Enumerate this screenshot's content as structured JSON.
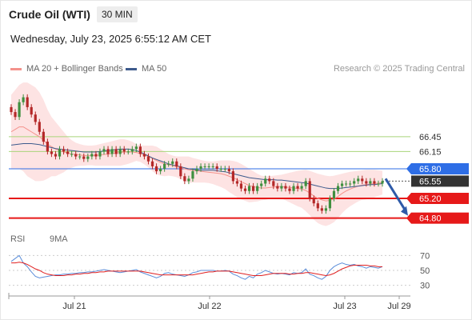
{
  "header": {
    "title": "Crude Oil (WTI)",
    "timeframe": "30 MIN",
    "datetime": "Wednesday, July 23, 2025 6:55:12 AM CET"
  },
  "legend": {
    "items": [
      {
        "label": "MA 20 + Bollinger Bands",
        "color": "#f4928c"
      },
      {
        "label": "MA 50",
        "color": "#3d5a8c"
      }
    ],
    "credit": "Research © 2025 Trading Central"
  },
  "rsi_legend": {
    "items": [
      {
        "label": "RSI",
        "color": "#5b8dd9"
      },
      {
        "label": "9MA",
        "color": "#e02020"
      }
    ]
  },
  "chart_data": {
    "type": "candlestick",
    "x_ticks": [
      "Jul 21",
      "Jul 22",
      "Jul 23",
      "Jul 29"
    ],
    "ylim": [
      64.6,
      67.6
    ],
    "closes": [
      66.95,
      66.85,
      67.15,
      67.25,
      67.05,
      66.9,
      66.75,
      66.55,
      66.35,
      66.15,
      66.1,
      66.05,
      66.2,
      66.15,
      66.1,
      66.1,
      66.05,
      66.05,
      66.0,
      66.05,
      66.1,
      66.05,
      66.15,
      66.2,
      66.1,
      66.2,
      66.1,
      66.2,
      66.15,
      66.15,
      66.2,
      66.25,
      66.1,
      66.05,
      65.95,
      65.85,
      65.75,
      65.8,
      65.9,
      65.9,
      65.95,
      65.85,
      65.65,
      65.55,
      65.6,
      65.75,
      65.8,
      65.85,
      65.85,
      65.85,
      65.85,
      65.8,
      65.8,
      65.8,
      65.75,
      65.55,
      65.5,
      65.4,
      65.35,
      65.45,
      65.35,
      65.45,
      65.5,
      65.6,
      65.55,
      65.45,
      65.4,
      65.45,
      65.4,
      65.35,
      65.45,
      65.4,
      65.45,
      65.55,
      65.2,
      65.1,
      65.0,
      64.95,
      65.0,
      65.2,
      65.35,
      65.45,
      65.5,
      65.5,
      65.5,
      65.55,
      65.6,
      65.55,
      65.5,
      65.55,
      65.5,
      65.5,
      65.55
    ],
    "ma20": [
      66.55,
      66.6,
      66.65,
      66.65,
      66.6,
      66.55,
      66.5,
      66.45,
      66.38,
      66.3,
      66.25,
      66.2,
      66.17,
      66.14,
      66.12,
      66.1,
      66.09,
      66.08,
      66.07,
      66.07,
      66.07,
      66.07,
      66.08,
      66.09,
      66.1,
      66.11,
      66.12,
      66.13,
      66.14,
      66.14,
      66.14,
      66.13,
      66.11,
      66.08,
      66.05,
      66.01,
      65.97,
      65.93,
      65.9,
      65.88,
      65.86,
      65.84,
      65.82,
      65.8,
      65.78,
      65.77,
      65.76,
      65.75,
      65.74,
      65.73,
      65.72,
      65.71,
      65.7,
      65.68,
      65.65,
      65.62,
      65.58,
      65.54,
      65.5,
      65.46,
      65.44,
      65.42,
      65.41,
      65.41,
      65.42,
      65.43,
      65.44,
      65.44,
      65.43,
      65.42,
      65.41,
      65.4,
      65.39,
      65.36,
      65.31,
      65.25,
      65.2,
      65.17,
      65.15,
      65.16,
      65.19,
      65.24,
      65.3,
      65.35,
      65.39,
      65.42,
      65.45,
      65.47,
      65.48,
      65.49,
      65.5,
      65.51,
      65.52
    ],
    "bb_upper": [
      67.3,
      67.4,
      67.5,
      67.55,
      67.55,
      67.5,
      67.45,
      67.35,
      67.2,
      67.0,
      66.85,
      66.75,
      66.65,
      66.55,
      66.45,
      66.38,
      66.33,
      66.3,
      66.28,
      66.27,
      66.27,
      66.28,
      66.3,
      66.32,
      66.34,
      66.36,
      66.38,
      66.4,
      66.4,
      66.38,
      66.35,
      66.3,
      66.28,
      66.27,
      66.27,
      66.27,
      66.25,
      66.2,
      66.15,
      66.1,
      66.07,
      66.05,
      66.05,
      66.05,
      66.05,
      66.02,
      66.0,
      65.98,
      65.96,
      65.95,
      65.95,
      65.96,
      65.97,
      65.97,
      65.97,
      65.96,
      65.94,
      65.9,
      65.85,
      65.8,
      65.75,
      65.7,
      65.66,
      65.65,
      65.65,
      65.66,
      65.67,
      65.68,
      65.7,
      65.72,
      65.74,
      65.76,
      65.77,
      65.78,
      65.76,
      65.73,
      65.7,
      65.68,
      65.66,
      65.65,
      65.66,
      65.68,
      65.7,
      65.72,
      65.74,
      65.75,
      65.76,
      65.77,
      65.78,
      65.78,
      65.78,
      65.77,
      65.76
    ],
    "bb_lower": [
      65.8,
      65.8,
      65.8,
      65.75,
      65.65,
      65.6,
      65.55,
      65.55,
      65.56,
      65.6,
      65.65,
      65.65,
      65.69,
      65.73,
      65.79,
      65.82,
      65.85,
      65.86,
      65.86,
      65.87,
      65.87,
      65.86,
      65.86,
      65.86,
      65.86,
      65.86,
      65.86,
      65.86,
      65.88,
      65.9,
      65.93,
      65.96,
      65.94,
      65.89,
      65.83,
      65.75,
      65.69,
      65.66,
      65.65,
      65.66,
      65.65,
      65.63,
      65.59,
      65.55,
      65.51,
      65.52,
      65.52,
      65.52,
      65.52,
      65.51,
      65.49,
      65.46,
      65.43,
      65.39,
      65.33,
      65.28,
      65.22,
      65.18,
      65.15,
      65.12,
      65.13,
      65.14,
      65.16,
      65.17,
      65.19,
      65.2,
      65.21,
      65.2,
      65.16,
      65.12,
      65.08,
      65.04,
      65.01,
      64.94,
      64.86,
      64.77,
      64.7,
      64.66,
      64.64,
      64.67,
      64.72,
      64.8,
      64.9,
      64.98,
      65.04,
      65.09,
      65.14,
      65.17,
      65.18,
      65.2,
      65.22,
      65.25,
      65.28
    ],
    "ma50": [
      66.28,
      66.29,
      66.3,
      66.31,
      66.31,
      66.31,
      66.3,
      66.29,
      66.27,
      66.25,
      66.23,
      66.21,
      66.2,
      66.19,
      66.18,
      66.17,
      66.16,
      66.15,
      66.14,
      66.14,
      66.14,
      66.14,
      66.15,
      66.16,
      66.17,
      66.18,
      66.19,
      66.2,
      66.2,
      66.2,
      66.19,
      66.17,
      66.14,
      66.1,
      66.06,
      66.02,
      65.99,
      65.96,
      65.93,
      65.9,
      65.88,
      65.86,
      65.84,
      65.82,
      65.8,
      65.79,
      65.78,
      65.77,
      65.77,
      65.77,
      65.77,
      65.76,
      65.75,
      65.74,
      65.72,
      65.7,
      65.68,
      65.66,
      65.64,
      65.62,
      65.61,
      65.6,
      65.59,
      65.58,
      65.58,
      65.58,
      65.57,
      65.57,
      65.56,
      65.55,
      65.54,
      65.53,
      65.52,
      65.51,
      65.49,
      65.47,
      65.45,
      65.43,
      65.41,
      65.4,
      65.4,
      65.4,
      65.41,
      65.42,
      65.43,
      65.44,
      65.45,
      65.46,
      65.47,
      65.48,
      65.48,
      65.49,
      65.5
    ],
    "levels": [
      {
        "value": 66.45,
        "label": "66.45",
        "kind": "resistance",
        "color": "#a9d47a"
      },
      {
        "value": 66.15,
        "label": "66.15",
        "kind": "resistance",
        "color": "#a9d47a"
      },
      {
        "value": 65.8,
        "label": "65.80",
        "kind": "pivot",
        "color": "#2e6ee6"
      },
      {
        "value": 65.2,
        "label": "65.20",
        "kind": "support",
        "color": "#e61919"
      },
      {
        "value": 64.8,
        "label": "64.80",
        "kind": "support",
        "color": "#e61919"
      }
    ],
    "current_price": {
      "value": 65.55,
      "label": "65.55",
      "color": "#333333"
    },
    "forecast_arrow": {
      "from": 65.6,
      "to": 64.85,
      "color": "#2e5aa8"
    },
    "rsi": {
      "ticks": [
        70,
        50,
        30
      ],
      "ylim": [
        20,
        80
      ],
      "values": [
        62,
        66,
        70,
        60,
        55,
        48,
        42,
        40,
        41,
        42,
        43,
        44,
        44,
        45,
        45,
        46,
        46,
        47,
        47,
        48,
        48,
        49,
        50,
        51,
        50,
        49,
        48,
        47,
        48,
        49,
        50,
        51,
        48,
        46,
        44,
        42,
        40,
        42,
        46,
        47,
        45,
        44,
        43,
        42,
        44,
        47,
        48,
        50,
        50,
        50,
        50,
        49,
        49,
        50,
        49,
        45,
        43,
        40,
        38,
        42,
        40,
        45,
        47,
        50,
        48,
        46,
        45,
        46,
        45,
        44,
        47,
        46,
        47,
        52,
        45,
        43,
        40,
        38,
        42,
        50,
        55,
        58,
        60,
        58,
        57,
        58,
        56,
        55,
        53,
        55,
        54,
        53,
        55
      ],
      "ma9": [
        60,
        60,
        61,
        60,
        58,
        55,
        52,
        50,
        47,
        45,
        44,
        43,
        43,
        43,
        44,
        44,
        45,
        45,
        46,
        46,
        47,
        47,
        48,
        48,
        49,
        49,
        49,
        49,
        49,
        49,
        49,
        49,
        49,
        48,
        47,
        46,
        45,
        44,
        44,
        44,
        44,
        44,
        44,
        44,
        44,
        44,
        45,
        46,
        47,
        48,
        48,
        49,
        49,
        49,
        49,
        48,
        47,
        46,
        45,
        44,
        43,
        43,
        43,
        44,
        45,
        46,
        46,
        46,
        46,
        45,
        45,
        46,
        46,
        47,
        47,
        46,
        45,
        44,
        43,
        44,
        46,
        49,
        52,
        54,
        56,
        57,
        57,
        57,
        57,
        56,
        56,
        55,
        55
      ]
    }
  }
}
